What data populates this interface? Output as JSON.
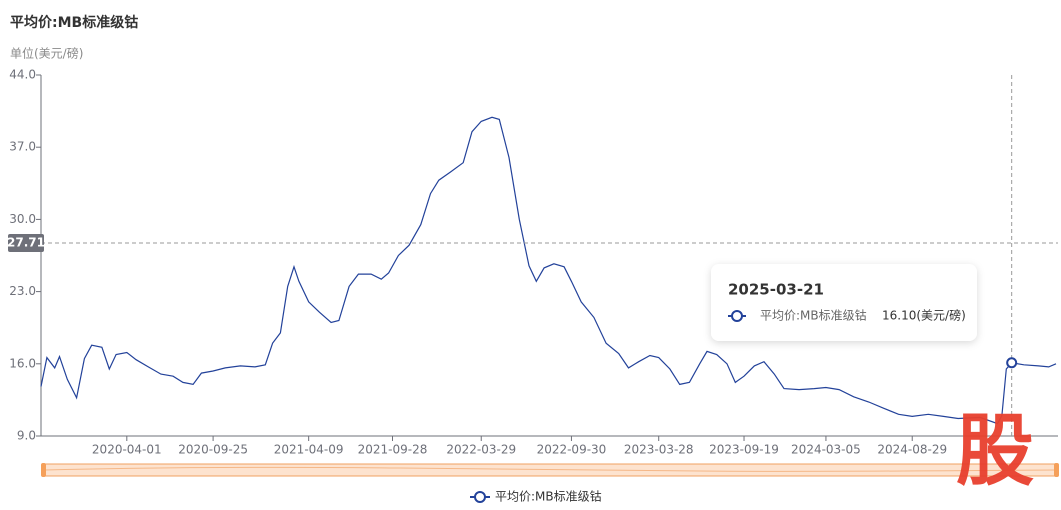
{
  "chart_data": {
    "type": "line",
    "title": "平均价:MB标准级钴",
    "subtitle": "单位(美元/磅)",
    "x": [
      "2019-10-08",
      "2019-10-20",
      "2019-11-05",
      "2019-11-15",
      "2019-12-01",
      "2019-12-20",
      "2020-01-05",
      "2020-01-20",
      "2020-02-10",
      "2020-02-25",
      "2020-03-10",
      "2020-04-01",
      "2020-04-20",
      "2020-05-15",
      "2020-06-10",
      "2020-07-05",
      "2020-07-25",
      "2020-08-15",
      "2020-09-01",
      "2020-09-25",
      "2020-10-20",
      "2020-11-20",
      "2020-12-20",
      "2021-01-10",
      "2021-01-25",
      "2021-02-10",
      "2021-02-25",
      "2021-03-10",
      "2021-03-20",
      "2021-04-09",
      "2021-05-01",
      "2021-05-25",
      "2021-06-10",
      "2021-07-01",
      "2021-07-20",
      "2021-08-15",
      "2021-09-05",
      "2021-09-20",
      "2021-10-10",
      "2021-11-01",
      "2021-11-25",
      "2021-12-15",
      "2022-01-01",
      "2022-01-25",
      "2022-02-20",
      "2022-03-10",
      "2022-03-29",
      "2022-04-20",
      "2022-05-05",
      "2022-05-25",
      "2022-06-15",
      "2022-07-05",
      "2022-07-20",
      "2022-08-05",
      "2022-08-25",
      "2022-09-15",
      "2022-09-30",
      "2022-10-20",
      "2022-11-15",
      "2022-12-10",
      "2023-01-05",
      "2023-01-25",
      "2023-02-15",
      "2023-03-10",
      "2023-03-28",
      "2023-04-20",
      "2023-05-10",
      "2023-05-30",
      "2023-06-20",
      "2023-07-05",
      "2023-07-25",
      "2023-08-15",
      "2023-09-01",
      "2023-09-19",
      "2023-10-10",
      "2023-10-30",
      "2023-11-20",
      "2023-12-10",
      "2024-01-10",
      "2024-02-10",
      "2024-03-05",
      "2024-04-01",
      "2024-05-01",
      "2024-06-01",
      "2024-07-01",
      "2024-08-01",
      "2024-08-29",
      "2024-10-01",
      "2024-11-01",
      "2024-12-01",
      "2025-01-15",
      "2025-02-20",
      "2025-03-01",
      "2025-03-10",
      "2025-03-21",
      "2025-04-15",
      "2025-05-15",
      "2025-06-05",
      "2025-06-20"
    ],
    "series": [
      {
        "name": "平均价:MB标准级钴",
        "color": "#23429a",
        "values": [
          13.8,
          16.6,
          15.6,
          16.7,
          14.5,
          12.7,
          16.5,
          17.8,
          17.6,
          15.5,
          16.9,
          17.1,
          16.4,
          15.7,
          15.0,
          14.8,
          14.2,
          14.0,
          15.1,
          15.3,
          15.6,
          15.8,
          15.7,
          15.9,
          18.0,
          19.0,
          23.5,
          25.4,
          24.0,
          22.0,
          21.0,
          20.0,
          20.2,
          23.5,
          24.7,
          24.7,
          24.2,
          24.8,
          26.5,
          27.5,
          29.5,
          32.5,
          33.8,
          34.6,
          35.5,
          38.5,
          39.5,
          39.9,
          39.7,
          36.0,
          30.0,
          25.5,
          24.0,
          25.3,
          25.7,
          25.4,
          24.0,
          22.0,
          20.5,
          18.0,
          17.0,
          15.6,
          16.2,
          16.8,
          16.6,
          15.5,
          14.0,
          14.2,
          16.0,
          17.2,
          16.9,
          16.0,
          14.2,
          14.8,
          15.8,
          16.2,
          15.0,
          13.6,
          13.5,
          13.6,
          13.7,
          13.5,
          12.8,
          12.3,
          11.7,
          11.1,
          10.9,
          11.1,
          10.9,
          10.7,
          10.8,
          10.2,
          11.0,
          15.5,
          16.1,
          15.9,
          15.8,
          15.7,
          16.0
        ]
      }
    ],
    "xlim": [
      "2019-10-08",
      "2025-06-24"
    ],
    "xticks": [
      "2020-04-01",
      "2020-09-25",
      "2021-04-09",
      "2021-09-28",
      "2022-03-29",
      "2022-09-30",
      "2023-03-28",
      "2023-09-19",
      "2024-03-05",
      "2024-08-29"
    ],
    "ylim": [
      9,
      44
    ],
    "yticks": [
      {
        "value": 9,
        "label": "9.0"
      },
      {
        "value": 16,
        "label": "16.0"
      },
      {
        "value": 23,
        "label": "23.0"
      },
      {
        "value": 30,
        "label": "30.0"
      },
      {
        "value": 37,
        "label": "37.0"
      },
      {
        "value": 44,
        "label": "44.0"
      }
    ],
    "cursor_y": 27.71,
    "tooltip": {
      "x": "2025-03-21",
      "value": 16.1,
      "value_label": "16.10(美元/磅)"
    },
    "watermark": "股"
  }
}
